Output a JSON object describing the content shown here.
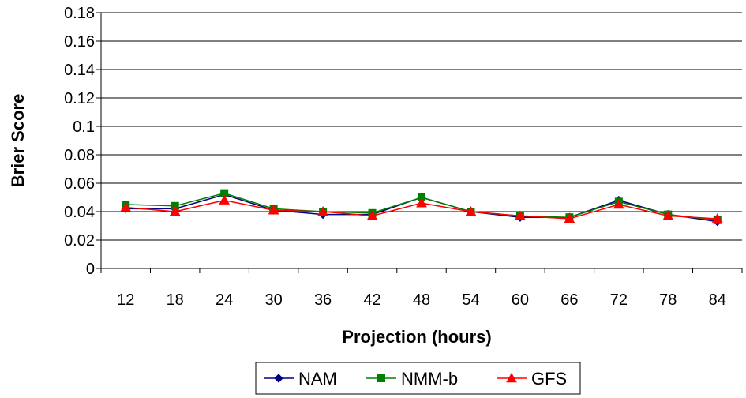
{
  "chart_data": {
    "type": "line",
    "title": "",
    "xlabel": "Projection (hours)",
    "ylabel": "Brier Score",
    "ylim": [
      0,
      0.18
    ],
    "ytick_labels": [
      "0",
      "0.02",
      "0.04",
      "0.06",
      "0.08",
      "0.1",
      "0.12",
      "0.14",
      "0.16",
      "0.18"
    ],
    "categories": [
      "12",
      "18",
      "24",
      "30",
      "36",
      "42",
      "48",
      "54",
      "60",
      "66",
      "72",
      "78",
      "84"
    ],
    "grid": "horizontal",
    "legend_position": "bottom",
    "series": [
      {
        "name": "NAM",
        "color": "#000080",
        "marker": "diamond",
        "values": [
          0.042,
          0.042,
          0.052,
          0.041,
          0.038,
          0.038,
          0.05,
          0.04,
          0.036,
          0.036,
          0.048,
          0.038,
          0.033
        ]
      },
      {
        "name": "NMM-b",
        "color": "#008000",
        "marker": "square",
        "values": [
          0.045,
          0.044,
          0.053,
          0.042,
          0.04,
          0.039,
          0.05,
          0.04,
          0.037,
          0.036,
          0.047,
          0.038,
          0.034
        ]
      },
      {
        "name": "GFS",
        "color": "#ff0000",
        "marker": "triangle",
        "values": [
          0.043,
          0.04,
          0.048,
          0.041,
          0.04,
          0.037,
          0.046,
          0.04,
          0.037,
          0.035,
          0.045,
          0.037,
          0.035
        ]
      }
    ]
  }
}
